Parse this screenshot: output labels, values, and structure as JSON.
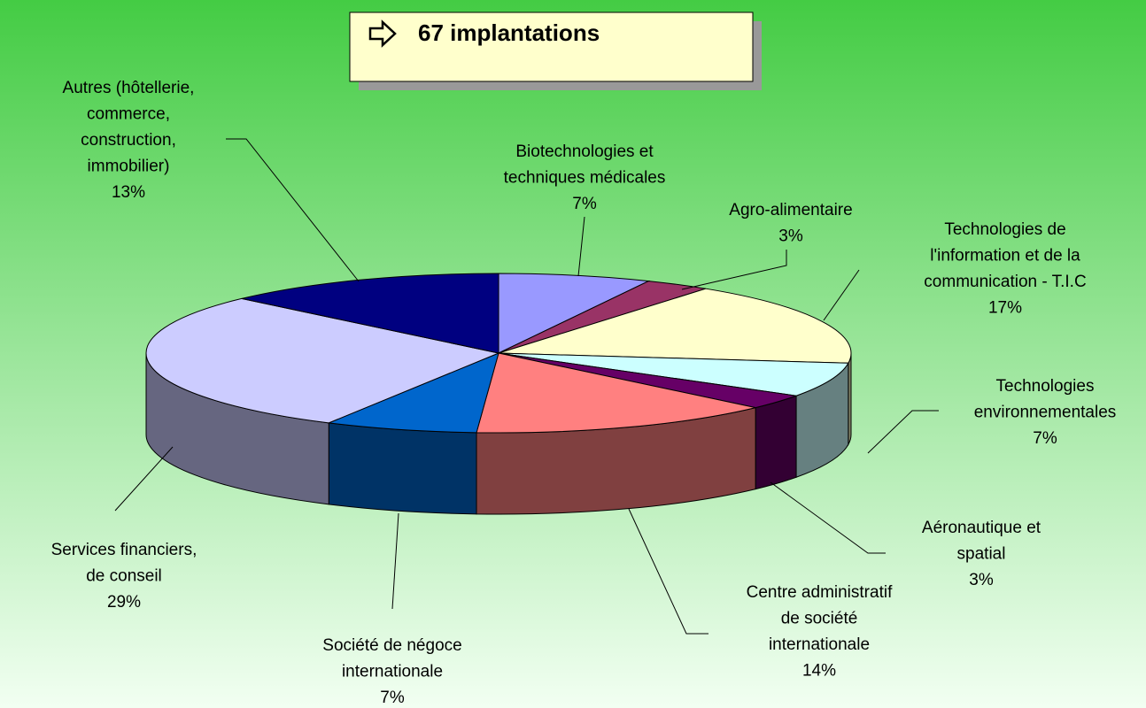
{
  "chart_data": {
    "type": "pie3d",
    "title": "67 implantations",
    "categories": [
      [
        "Biotechnologies et",
        "techniques médicales"
      ],
      [
        "Agro-alimentaire"
      ],
      [
        "Technologies de",
        "l'information et de la",
        "communication - T.I.C"
      ],
      [
        "Technologies",
        "environnementales"
      ],
      [
        "Aéronautique et",
        "spatial"
      ],
      [
        "Centre administratif",
        "de société",
        "internationale"
      ],
      [
        "Société de négoce",
        "internationale"
      ],
      [
        "Services financiers,",
        "de conseil"
      ],
      [
        "Autres (hôtellerie,",
        "commerce,",
        "construction,",
        "immobilier)"
      ]
    ],
    "values": [
      7,
      3,
      17,
      7,
      3,
      14,
      7,
      29,
      13
    ],
    "value_labels": [
      "7%",
      "3%",
      "17%",
      "7%",
      "3%",
      "14%",
      "7%",
      "29%",
      "13%"
    ],
    "colors": [
      "#9999ff",
      "#993366",
      "#ffffcc",
      "#ccffff",
      "#660066",
      "#ff8080",
      "#0066cc",
      "#ccccff",
      "#000080"
    ]
  }
}
